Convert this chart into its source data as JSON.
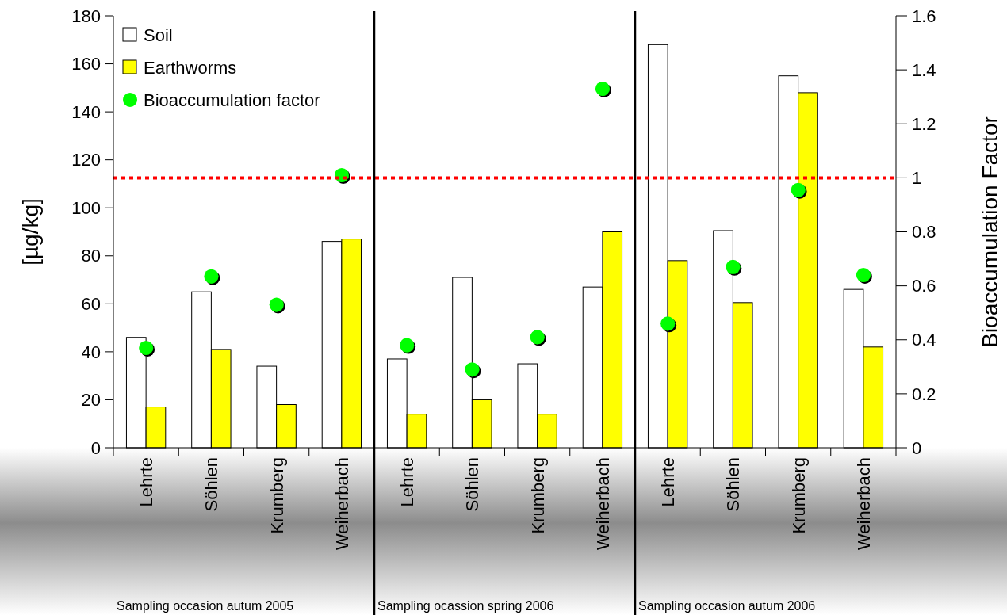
{
  "chart_data": {
    "type": "bar",
    "ylabel": "[µg/kg]",
    "y2label": "Bioaccumulation Factor",
    "categories": [
      "Lehrte",
      "Söhlen",
      "Krumberg",
      "Weiherbach",
      "Lehrte",
      "Söhlen",
      "Krumberg",
      "Weiherbach",
      "Lehrte",
      "Söhlen",
      "Krumberg",
      "Weiherbach"
    ],
    "series": [
      {
        "name": "Soil",
        "color": "#ffffff",
        "values": [
          46,
          65,
          34,
          86,
          37,
          71,
          35,
          67,
          168,
          90.5,
          155,
          66
        ]
      },
      {
        "name": "Earthworms",
        "color": "#ffff00",
        "values": [
          17,
          41,
          18,
          87,
          14,
          20,
          14,
          90,
          78,
          60.5,
          148,
          42
        ]
      },
      {
        "name": "Bioaccumulation factor",
        "type": "scatter",
        "axis": "y2",
        "color": "#00ff00",
        "marker": "circle",
        "values": [
          0.37,
          0.635,
          0.53,
          1.01,
          0.38,
          0.29,
          0.41,
          1.33,
          0.46,
          0.67,
          0.955,
          0.64
        ]
      }
    ],
    "ylim": [
      0,
      180
    ],
    "yticks": [
      0,
      20,
      40,
      60,
      80,
      100,
      120,
      140,
      160,
      180
    ],
    "y2lim": [
      0,
      1.6
    ],
    "y2ticks": [
      0,
      0.2,
      0.4,
      0.6,
      0.8,
      1,
      1.2,
      1.4,
      1.6
    ],
    "ref_lines": [
      {
        "axis": "y2",
        "value": 1,
        "color": "#ff0000",
        "line_style": "dotted"
      }
    ],
    "annotations": [
      "Sampling occasion autum 2005",
      "Sampling ocassion spring 2006",
      "Sampling occasion autum 2006"
    ],
    "legend": "top left",
    "grid": false
  }
}
